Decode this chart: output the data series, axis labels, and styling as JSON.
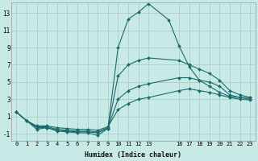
{
  "xlabel": "Humidex (Indice chaleur)",
  "xlim": [
    -0.5,
    23.5
  ],
  "ylim": [
    -1.8,
    14.2
  ],
  "yticks": [
    -1,
    1,
    3,
    5,
    7,
    9,
    11,
    13
  ],
  "xticks": [
    0,
    1,
    2,
    3,
    4,
    5,
    6,
    7,
    8,
    9,
    10,
    11,
    12,
    13,
    16,
    17,
    18,
    19,
    20,
    21,
    22,
    23
  ],
  "bg_color": "#c8eae6",
  "grid_color": "#b0ccc8",
  "line_color": "#1a6b6b",
  "curves": [
    {
      "x": [
        0,
        1,
        2,
        3,
        4,
        5,
        6,
        7,
        8,
        9,
        10,
        11,
        12,
        13,
        15,
        16,
        17,
        18,
        19,
        20,
        21,
        22,
        23
      ],
      "y": [
        1.5,
        0.5,
        -0.5,
        -0.3,
        -0.7,
        -0.8,
        -0.9,
        -0.9,
        -1.2,
        -0.4,
        9.0,
        12.3,
        13.1,
        14.1,
        12.2,
        9.2,
        6.8,
        5.2,
        4.5,
        3.8,
        3.3,
        3.2,
        3.2
      ]
    },
    {
      "x": [
        0,
        1,
        2,
        3,
        4,
        5,
        6,
        7,
        8,
        9,
        10,
        11,
        12,
        13,
        16,
        17,
        18,
        19,
        20,
        21,
        22,
        23
      ],
      "y": [
        1.5,
        0.5,
        -0.3,
        -0.3,
        -0.6,
        -0.7,
        -0.8,
        -0.8,
        -0.9,
        -0.4,
        5.7,
        7.0,
        7.5,
        7.8,
        7.5,
        7.0,
        6.5,
        6.0,
        5.2,
        4.0,
        3.5,
        3.2
      ]
    },
    {
      "x": [
        0,
        1,
        2,
        3,
        4,
        5,
        6,
        7,
        8,
        9,
        10,
        11,
        12,
        13,
        16,
        17,
        18,
        19,
        20,
        21,
        22,
        23
      ],
      "y": [
        1.5,
        0.5,
        -0.2,
        -0.2,
        -0.5,
        -0.6,
        -0.7,
        -0.7,
        -0.8,
        -0.3,
        3.0,
        4.0,
        4.5,
        4.8,
        5.5,
        5.5,
        5.2,
        5.0,
        4.5,
        3.5,
        3.2,
        3.0
      ]
    },
    {
      "x": [
        0,
        1,
        2,
        3,
        4,
        5,
        6,
        7,
        8,
        9,
        10,
        11,
        12,
        13,
        16,
        17,
        18,
        19,
        20,
        21,
        22,
        23
      ],
      "y": [
        1.5,
        0.5,
        -0.1,
        -0.1,
        -0.3,
        -0.4,
        -0.5,
        -0.5,
        -0.6,
        -0.2,
        1.8,
        2.5,
        3.0,
        3.2,
        4.0,
        4.2,
        4.0,
        3.8,
        3.5,
        3.2,
        3.0,
        2.9
      ]
    }
  ]
}
